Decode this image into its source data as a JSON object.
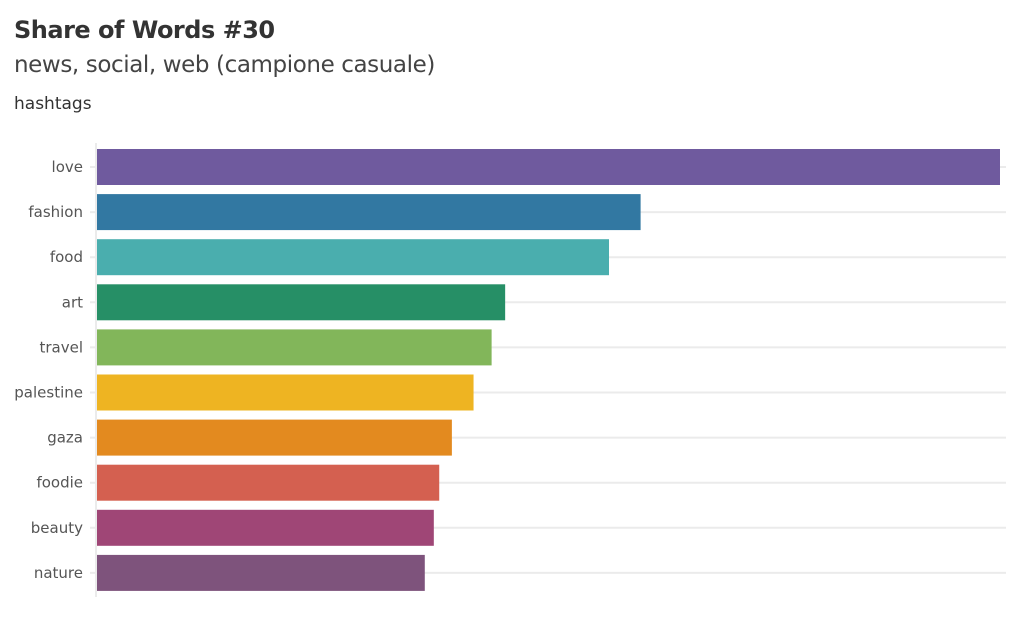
{
  "chart_data": {
    "type": "bar",
    "orientation": "horizontal",
    "title": "Share of Words #30",
    "subtitle": "news, social, web (campione casuale)",
    "caption": "hashtags",
    "xlabel": "",
    "ylabel": "",
    "value_unit": "relative share (love = 100)",
    "xlim": [
      0,
      100
    ],
    "grid": true,
    "categories": [
      "love",
      "fashion",
      "food",
      "art",
      "travel",
      "palestine",
      "gaza",
      "foodie",
      "beauty",
      "nature"
    ],
    "values": [
      100,
      60.2,
      56.7,
      45.2,
      43.7,
      41.7,
      39.3,
      37.9,
      37.3,
      36.3
    ],
    "colors": [
      "#6f5a9e",
      "#3278a2",
      "#4aaeae",
      "#268f66",
      "#82b65a",
      "#eeb422",
      "#e38a1f",
      "#d46050",
      "#9f4676",
      "#7e537c"
    ]
  }
}
